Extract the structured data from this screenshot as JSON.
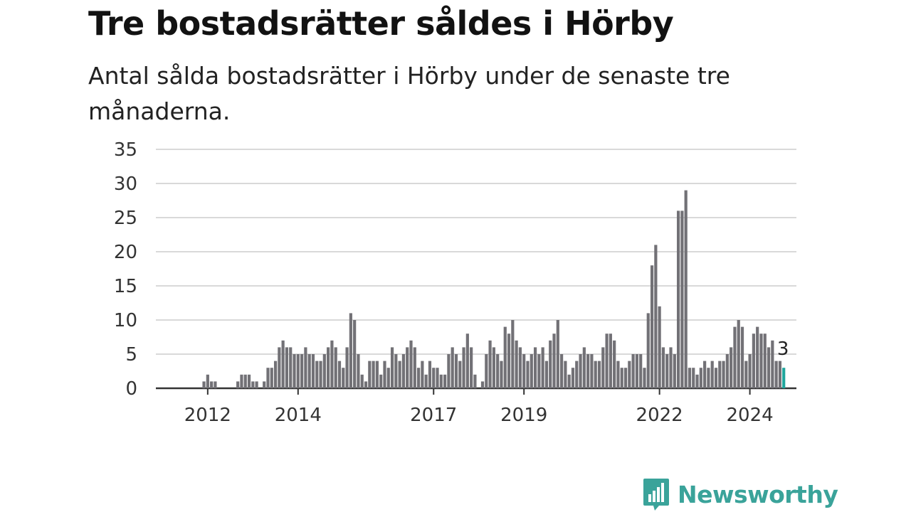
{
  "title": "Tre bostadsrätter såldes i Hörby",
  "subtitle": "Antal sålda bostadsrätter i Hörby under de senaste tre månaderna.",
  "logo": {
    "text": "Newsworthy",
    "icon": "bar-chart-speech-bubble-icon",
    "color": "#3aa39a"
  },
  "chart_data": {
    "type": "bar",
    "title": "",
    "xlabel": "",
    "ylabel": "",
    "ylim": [
      0,
      35
    ],
    "yticks": [
      0,
      5,
      10,
      15,
      20,
      25,
      30,
      35
    ],
    "grid": true,
    "legend": "none",
    "x_start": "2011-07",
    "xticks": [
      {
        "label": "2012",
        "month": "2012-01"
      },
      {
        "label": "2014",
        "month": "2014-01"
      },
      {
        "label": "2017",
        "month": "2017-01"
      },
      {
        "label": "2019",
        "month": "2019-01"
      },
      {
        "label": "2022",
        "month": "2022-01"
      },
      {
        "label": "2024",
        "month": "2024-01"
      }
    ],
    "bar_color": "#727176",
    "highlight_color": "#1fa59c",
    "values": [
      0,
      0,
      0,
      0,
      0,
      1,
      2,
      1,
      1,
      0,
      0,
      0,
      0,
      0,
      1,
      2,
      2,
      2,
      1,
      1,
      0,
      1,
      3,
      3,
      4,
      6,
      7,
      6,
      6,
      5,
      5,
      5,
      6,
      5,
      5,
      4,
      4,
      5,
      6,
      7,
      6,
      4,
      3,
      6,
      11,
      10,
      5,
      2,
      1,
      4,
      4,
      4,
      2,
      4,
      3,
      6,
      5,
      4,
      5,
      6,
      7,
      6,
      3,
      4,
      2,
      4,
      3,
      3,
      2,
      2,
      5,
      6,
      5,
      4,
      6,
      8,
      6,
      2,
      0,
      1,
      5,
      7,
      6,
      5,
      4,
      9,
      8,
      10,
      7,
      6,
      5,
      4,
      5,
      6,
      5,
      6,
      4,
      7,
      8,
      10,
      5,
      4,
      2,
      3,
      4,
      5,
      6,
      5,
      5,
      4,
      4,
      6,
      8,
      8,
      7,
      4,
      3,
      3,
      4,
      5,
      5,
      5,
      3,
      11,
      18,
      21,
      12,
      6,
      5,
      6,
      5,
      26,
      26,
      29,
      3,
      3,
      2,
      3,
      4,
      3,
      4,
      3,
      4,
      4,
      5,
      6,
      9,
      10,
      9,
      4,
      5,
      8,
      9,
      8,
      8,
      6,
      7,
      4,
      4,
      3
    ],
    "highlight_label": "3"
  }
}
